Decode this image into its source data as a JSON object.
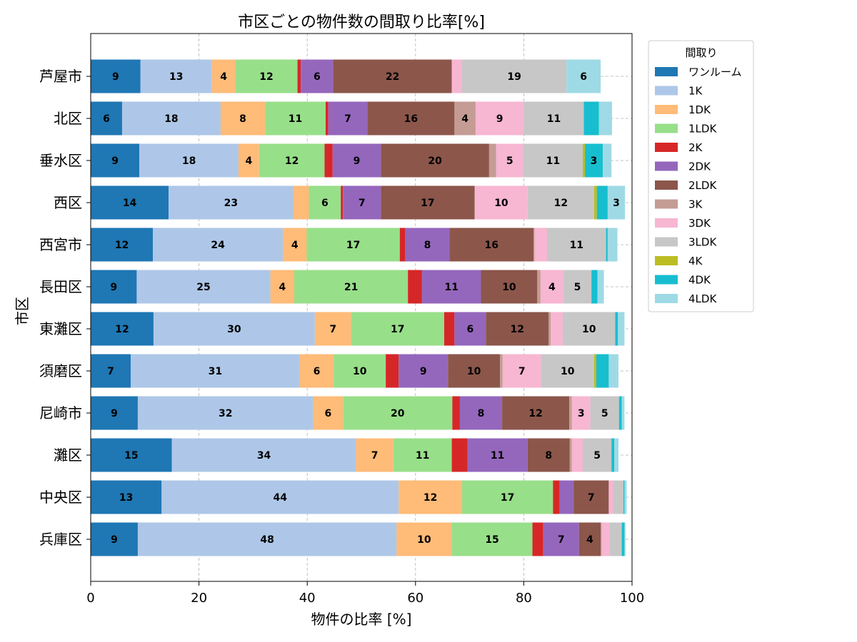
{
  "chart_data": {
    "type": "bar",
    "orientation": "horizontal",
    "stacked": true,
    "title": "市区ごとの物件数の間取り比率[%]",
    "xlabel": "物件の比率 [%]",
    "ylabel": "市区",
    "xlim": [
      0,
      100
    ],
    "xticks": [
      0,
      20,
      40,
      60,
      80,
      100
    ],
    "grid": true,
    "legend_title": "間取り",
    "legend_placement": "outside-top-right",
    "label_threshold": 3,
    "categories": [
      "芦屋市",
      "北区",
      "垂水区",
      "西区",
      "西宮市",
      "長田区",
      "東灘区",
      "須磨区",
      "尼崎市",
      "灘区",
      "中央区",
      "兵庫区"
    ],
    "series": [
      {
        "name": "ワンルーム",
        "color": "#1f77b4",
        "values": [
          9.2,
          5.8,
          9.0,
          14.4,
          11.5,
          8.5,
          11.6,
          7.4,
          8.7,
          15.0,
          13.1,
          8.7
        ]
      },
      {
        "name": "1K",
        "color": "#aec7e8",
        "values": [
          13.2,
          18.2,
          18.3,
          23.0,
          24.0,
          24.7,
          29.8,
          31.2,
          32.4,
          34.0,
          43.8,
          47.8
        ]
      },
      {
        "name": "1DK",
        "color": "#ffbb78",
        "values": [
          4.3,
          8.2,
          3.8,
          2.9,
          4.4,
          4.4,
          6.7,
          6.3,
          5.5,
          6.9,
          11.7,
          10.2
        ]
      },
      {
        "name": "1LDK",
        "color": "#98df8a",
        "values": [
          11.5,
          11.2,
          12.1,
          5.9,
          17.2,
          21.0,
          17.2,
          9.6,
          20.2,
          10.8,
          16.8,
          14.9
        ]
      },
      {
        "name": "2K",
        "color": "#d62728",
        "values": [
          0.6,
          0.5,
          1.5,
          0.4,
          1.0,
          2.6,
          1.9,
          2.4,
          1.4,
          2.9,
          1.2,
          2.0
        ]
      },
      {
        "name": "2DK",
        "color": "#9467bd",
        "values": [
          6.0,
          7.2,
          8.9,
          7.0,
          8.2,
          10.9,
          5.8,
          9.1,
          7.8,
          11.1,
          2.6,
          6.6
        ]
      },
      {
        "name": "2LDK",
        "color": "#8c564b",
        "values": [
          21.9,
          16.1,
          20.0,
          17.3,
          15.5,
          10.4,
          11.6,
          9.6,
          12.4,
          7.8,
          6.5,
          4.0
        ]
      },
      {
        "name": "3K",
        "color": "#c49c94",
        "values": [
          0.0,
          3.9,
          1.3,
          0.1,
          0.2,
          0.6,
          0.4,
          0.5,
          0.5,
          0.4,
          0.0,
          0.2
        ]
      },
      {
        "name": "3DK",
        "color": "#f7b6d2",
        "values": [
          1.9,
          8.9,
          5.0,
          9.7,
          2.3,
          4.2,
          2.2,
          7.1,
          3.4,
          2.0,
          0.8,
          1.4
        ]
      },
      {
        "name": "3LDK",
        "color": "#c7c7c7",
        "values": [
          19.3,
          11.1,
          11.0,
          12.3,
          10.9,
          5.2,
          9.7,
          9.8,
          5.3,
          5.3,
          1.9,
          2.3
        ]
      },
      {
        "name": "4K",
        "color": "#bcbd22",
        "values": [
          0.0,
          0.0,
          0.4,
          0.5,
          0.0,
          0.0,
          0.0,
          0.4,
          0.0,
          0.0,
          0.0,
          0.0
        ]
      },
      {
        "name": "4DK",
        "color": "#17becf",
        "values": [
          0.0,
          2.8,
          3.3,
          2.0,
          0.3,
          1.1,
          0.5,
          2.3,
          0.5,
          0.5,
          0.2,
          0.5
        ]
      },
      {
        "name": "4LDK",
        "color": "#9edae5",
        "values": [
          6.3,
          2.4,
          1.6,
          3.2,
          1.8,
          1.2,
          1.2,
          1.8,
          0.5,
          0.8,
          0.4,
          0.2
        ]
      }
    ]
  }
}
